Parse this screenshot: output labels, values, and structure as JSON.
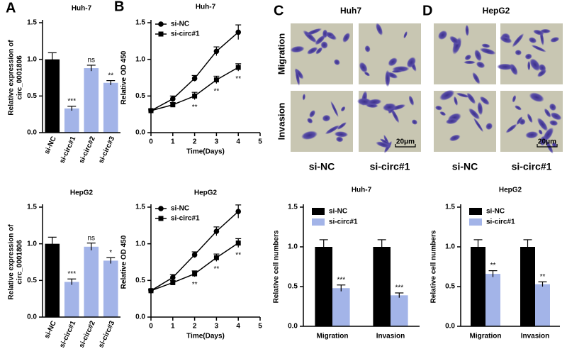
{
  "chart_data": [
    {
      "type": "bar",
      "panel": "A",
      "title": "Huh-7",
      "ylabel": [
        "Relative expression of",
        "circ_0001806"
      ],
      "categories": [
        "si-NC",
        "si-circ#1",
        "si-circ#2",
        "si-circ#3"
      ],
      "values": [
        1.0,
        0.33,
        0.88,
        0.68
      ],
      "errors": [
        0.09,
        0.03,
        0.04,
        0.03
      ],
      "colors": [
        "#000000",
        "#a3b4e8",
        "#a3b4e8",
        "#a3b4e8"
      ],
      "annotations": [
        null,
        "***",
        "ns",
        "**"
      ],
      "ylim": [
        0,
        1.5
      ],
      "yticks": [
        {
          "value": 0,
          "label": "0.0"
        },
        0.5,
        {
          "value": 1,
          "label": "1.0"
        },
        1.5
      ]
    },
    {
      "type": "bar",
      "title": "HepG2",
      "ylabel": [
        "Relative expression of",
        "circ_0001806"
      ],
      "categories": [
        "si-NC",
        "si-circ#1",
        "si-circ#2",
        "si-circ#3"
      ],
      "values": [
        1.0,
        0.48,
        0.96,
        0.77
      ],
      "errors": [
        0.09,
        0.04,
        0.05,
        0.04
      ],
      "colors": [
        "#000000",
        "#a3b4e8",
        "#a3b4e8",
        "#a3b4e8"
      ],
      "annotations": [
        null,
        "***",
        "ns",
        "*"
      ],
      "ylim": [
        0,
        1.5
      ],
      "yticks": [
        {
          "value": 0,
          "label": "0.0"
        },
        0.5,
        {
          "value": 1,
          "label": "1.0"
        },
        1.5
      ]
    },
    {
      "type": "line",
      "panel": "B",
      "title": "Huh-7",
      "xlabel": "Time(Days)",
      "ylabel": "Relative OD 450",
      "legend": "upper left",
      "x": [
        0,
        1,
        2,
        3,
        4
      ],
      "series": [
        {
          "name": "si-NC",
          "color": "#000000",
          "marker": "circle",
          "values": [
            0.3,
            0.46,
            0.74,
            1.11,
            1.37
          ],
          "errors": [
            0.02,
            0.04,
            0.04,
            0.06,
            0.1
          ]
        },
        {
          "name": "si-circ#1",
          "color": "#000000",
          "marker": "square",
          "values": [
            0.3,
            0.38,
            0.5,
            0.72,
            0.89
          ],
          "errors": [
            0.02,
            0.03,
            0.05,
            0.05,
            0.05
          ],
          "annotations": [
            null,
            null,
            "**",
            "**",
            "**"
          ]
        }
      ],
      "xlim": [
        0,
        5
      ],
      "xticks": [
        0,
        1,
        2,
        3,
        4,
        5
      ],
      "ylim": [
        0,
        1.5
      ],
      "yticks": [
        {
          "value": 0,
          "label": "0.0"
        },
        0.5,
        {
          "value": 1,
          "label": "1.0"
        },
        1.5
      ]
    },
    {
      "type": "line",
      "title": "HepG2",
      "xlabel": "Time(Days)",
      "ylabel": "Relative OD 450",
      "legend": "upper left",
      "x": [
        0,
        1,
        2,
        3,
        4
      ],
      "series": [
        {
          "name": "si-NC",
          "color": "#000000",
          "marker": "circle",
          "values": [
            0.36,
            0.54,
            0.85,
            1.17,
            1.44
          ],
          "errors": [
            0.02,
            0.04,
            0.04,
            0.06,
            0.09
          ]
        },
        {
          "name": "si-circ#1",
          "color": "#000000",
          "marker": "square",
          "values": [
            0.36,
            0.47,
            0.59,
            0.81,
            1.01
          ],
          "errors": [
            0.02,
            0.03,
            0.04,
            0.05,
            0.06
          ],
          "annotations": [
            null,
            null,
            "**",
            "**",
            "**"
          ]
        }
      ],
      "xlim": [
        0,
        5
      ],
      "xticks": [
        0,
        1,
        2,
        3,
        4,
        5
      ],
      "ylim": [
        0,
        1.5
      ],
      "yticks": [
        {
          "value": 0,
          "label": "0.0"
        },
        0.5,
        {
          "value": 1,
          "label": "1.0"
        },
        1.5
      ]
    },
    {
      "type": "bar",
      "title": "Huh-7",
      "ylabel": "Relative cell numbers",
      "legend": "upper left",
      "categories": [
        "Migration",
        "Invasion"
      ],
      "series": [
        {
          "name": "si-NC",
          "color": "#000000",
          "values": [
            1.0,
            1.0
          ],
          "errors": [
            0.09,
            0.09
          ]
        },
        {
          "name": "si-circ#1",
          "color": "#a3b4e8",
          "values": [
            0.48,
            0.39
          ],
          "errors": [
            0.04,
            0.03
          ],
          "annotations": [
            "***",
            "***"
          ]
        }
      ],
      "ylim": [
        0,
        1.5
      ],
      "yticks": [
        {
          "value": 0,
          "label": "0.0"
        },
        0.5,
        {
          "value": 1,
          "label": "1.0"
        },
        1.5
      ]
    },
    {
      "type": "bar",
      "title": "HepG2",
      "ylabel": "Relative cell numbers",
      "legend": "upper left",
      "categories": [
        "Migration",
        "Invasion"
      ],
      "series": [
        {
          "name": "si-NC",
          "color": "#000000",
          "values": [
            1.0,
            1.0
          ],
          "errors": [
            0.09,
            0.09
          ]
        },
        {
          "name": "si-circ#1",
          "color": "#a3b4e8",
          "values": [
            0.66,
            0.53
          ],
          "errors": [
            0.04,
            0.03
          ],
          "annotations": [
            "**",
            "**"
          ]
        }
      ],
      "ylim": [
        0,
        1.5
      ],
      "yticks": [
        {
          "value": 0,
          "label": "0.0"
        },
        0.5,
        {
          "value": 1,
          "label": "1.0"
        },
        1.5
      ]
    }
  ],
  "micrographs": [
    {
      "panel": "C",
      "title": "Huh7",
      "rows": [
        "Migration",
        "Invasion"
      ],
      "columns": [
        "si-NC",
        "si-circ#1"
      ],
      "scale_bar": "20μm"
    },
    {
      "panel": "D",
      "title": "HepG2",
      "columns": [
        "si-NC",
        "si-circ#1"
      ],
      "scale_bar": "20μm"
    }
  ]
}
